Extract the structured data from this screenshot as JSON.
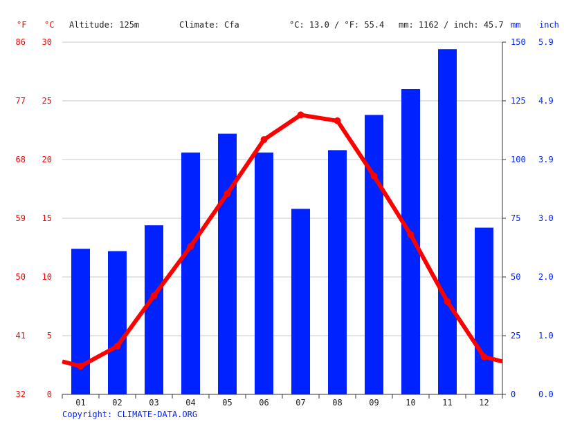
{
  "header": {
    "f_unit": "°F",
    "c_unit": "°C",
    "altitude": "Altitude: 125m",
    "climate": "Climate: Cfa",
    "temp_avg": "°C: 13.0 / °F: 55.4",
    "precip_total": "mm: 1162 / inch: 45.7",
    "mm_unit": "mm",
    "inch_unit": "inch"
  },
  "footer": {
    "copyright": "Copyright: CLIMATE-DATA.ORG"
  },
  "colors": {
    "temperature": "#ff0000",
    "precipitation": "#0022ff",
    "grid": "#c8c8c8"
  },
  "chart_data": {
    "type": "bar",
    "grid": true,
    "categories": [
      "01",
      "02",
      "03",
      "04",
      "05",
      "06",
      "07",
      "08",
      "09",
      "10",
      "11",
      "12"
    ],
    "series": [
      {
        "type": "bar",
        "axis": "right",
        "unit": "mm",
        "values": [
          62,
          61,
          72,
          103,
          111,
          103,
          79,
          104,
          119,
          130,
          147,
          71
        ]
      },
      {
        "type": "line",
        "axis": "left",
        "unit": "°C",
        "values": [
          2.4,
          4.1,
          8.4,
          12.6,
          17.1,
          21.7,
          23.8,
          23.3,
          18.6,
          13.6,
          7.9,
          3.2
        ],
        "edge_values": [
          2.8,
          2.8
        ]
      }
    ],
    "y_left": {
      "unit": "°C",
      "ylim": [
        0,
        30
      ],
      "ticks": [
        0,
        5,
        10,
        15,
        20,
        25,
        30
      ],
      "fahrenheit_ticks": [
        "32",
        "41",
        "50",
        "59",
        "68",
        "77",
        "86"
      ]
    },
    "y_right": {
      "unit": "mm",
      "ylim": [
        0,
        150
      ],
      "ticks": [
        0,
        25,
        50,
        75,
        100,
        125,
        150
      ],
      "inch_ticks": [
        "0.0",
        "1.0",
        "2.0",
        "3.0",
        "3.9",
        "4.9",
        "5.9"
      ]
    }
  }
}
